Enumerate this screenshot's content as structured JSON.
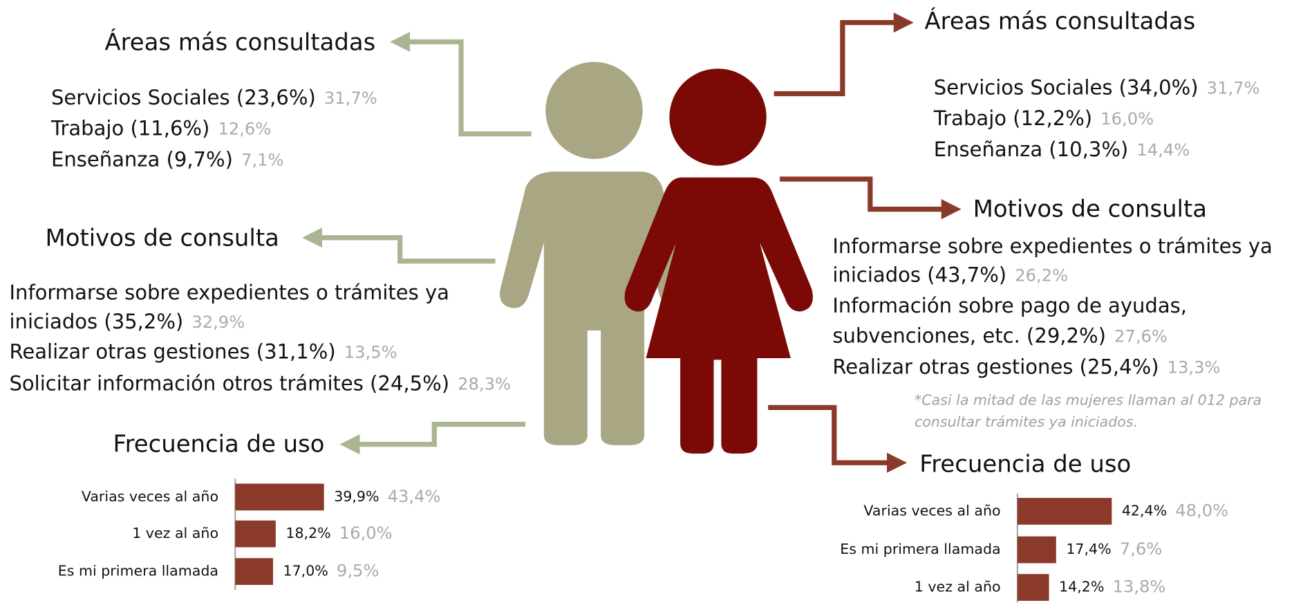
{
  "left": {
    "areas": {
      "title": "Áreas más consultadas",
      "items": [
        {
          "text": "Servicios Sociales (23,6%)",
          "compare": "31,7%"
        },
        {
          "text": "Trabajo (11,6%)",
          "compare": "12,6%"
        },
        {
          "text": "Enseñanza (9,7%)",
          "compare": "7,1%"
        }
      ]
    },
    "motivos": {
      "title": "Motivos de consulta",
      "lines": [
        {
          "text": "Informarse sobre expedientes o trámites ya"
        },
        {
          "text": "iniciados (35,2%)",
          "compare": "32,9%"
        },
        {
          "text": "Realizar otras gestiones (31,1%)",
          "compare": "13,5%"
        },
        {
          "text": "Solicitar información otros trámites (24,5%)",
          "compare": "28,3%"
        }
      ]
    },
    "frecuencia": {
      "title": "Frecuencia de uso",
      "bars": [
        {
          "category": "Varias veces al año",
          "value": 39.9,
          "value_label": "39,9%",
          "compare": "43,4%"
        },
        {
          "category": "1 vez al año",
          "value": 18.2,
          "value_label": "18,2%",
          "compare": "16,0%"
        },
        {
          "category": "Es mi primera llamada",
          "value": 17.0,
          "value_label": "17,0%",
          "compare": "9,5%"
        }
      ]
    }
  },
  "right": {
    "areas": {
      "title": "Áreas más consultadas",
      "items": [
        {
          "text": "Servicios Sociales (34,0%)",
          "compare": "31,7%"
        },
        {
          "text": "Trabajo (12,2%)",
          "compare": "16,0%"
        },
        {
          "text": "Enseñanza (10,3%)",
          "compare": "14,4%"
        }
      ]
    },
    "motivos": {
      "title": "Motivos de consulta",
      "lines": [
        {
          "text": "Informarse sobre expedientes o trámites ya"
        },
        {
          "text": "iniciados (43,7%)",
          "compare": "26,2%"
        },
        {
          "text": "Información sobre pago de ayudas,"
        },
        {
          "text": "subvenciones, etc.  (29,2%)",
          "compare": "27,6%"
        },
        {
          "text": "Realizar otras gestiones (25,4%)",
          "compare": "13,3%"
        }
      ]
    },
    "note": [
      "*Casi la mitad de las mujeres llaman al 012 para",
      "consultar trámites ya iniciados."
    ],
    "frecuencia": {
      "title": "Frecuencia de uso",
      "bars": [
        {
          "category": "Varias veces al año",
          "value": 42.4,
          "value_label": "42,4%",
          "compare": "48,0%"
        },
        {
          "category": "Es mi primera llamada",
          "value": 17.4,
          "value_label": "17,4%",
          "compare": "7,6%"
        },
        {
          "category": "1 vez al año",
          "value": 14.2,
          "value_label": "14,2%",
          "compare": "13,8%"
        }
      ]
    }
  }
}
